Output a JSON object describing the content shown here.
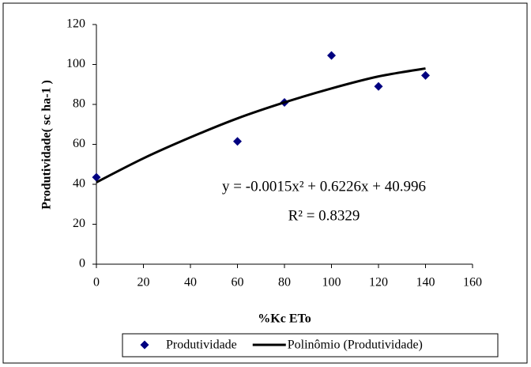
{
  "chart_data": {
    "type": "scatter",
    "xlabel": "%Kc ETo",
    "ylabel": "Produtividade( sc ha-1 )",
    "annotations": [
      "y = -0.0015x² + 0.6226x + 40.996",
      "R² = 0.8329"
    ],
    "xlim": [
      0,
      160
    ],
    "xticks": [
      0,
      20,
      40,
      60,
      80,
      100,
      120,
      140,
      160
    ],
    "ylim": [
      0,
      120
    ],
    "yticks": [
      0,
      20,
      40,
      60,
      80,
      100,
      120
    ],
    "grid": false,
    "legend": "bottom",
    "series": [
      {
        "name": "Produtividade",
        "type": "scatter",
        "color": "#000080",
        "x": [
          0,
          60,
          80,
          100,
          120,
          140
        ],
        "values": [
          43.5,
          61.5,
          81,
          104.5,
          89,
          94.5
        ]
      },
      {
        "name": "Polinômio (Produtividade)",
        "type": "line",
        "color": "#000000",
        "x": [
          0,
          20,
          40,
          60,
          80,
          100,
          120,
          140
        ],
        "values": [
          41,
          53,
          63.5,
          73,
          81,
          88,
          94,
          98
        ]
      }
    ]
  }
}
